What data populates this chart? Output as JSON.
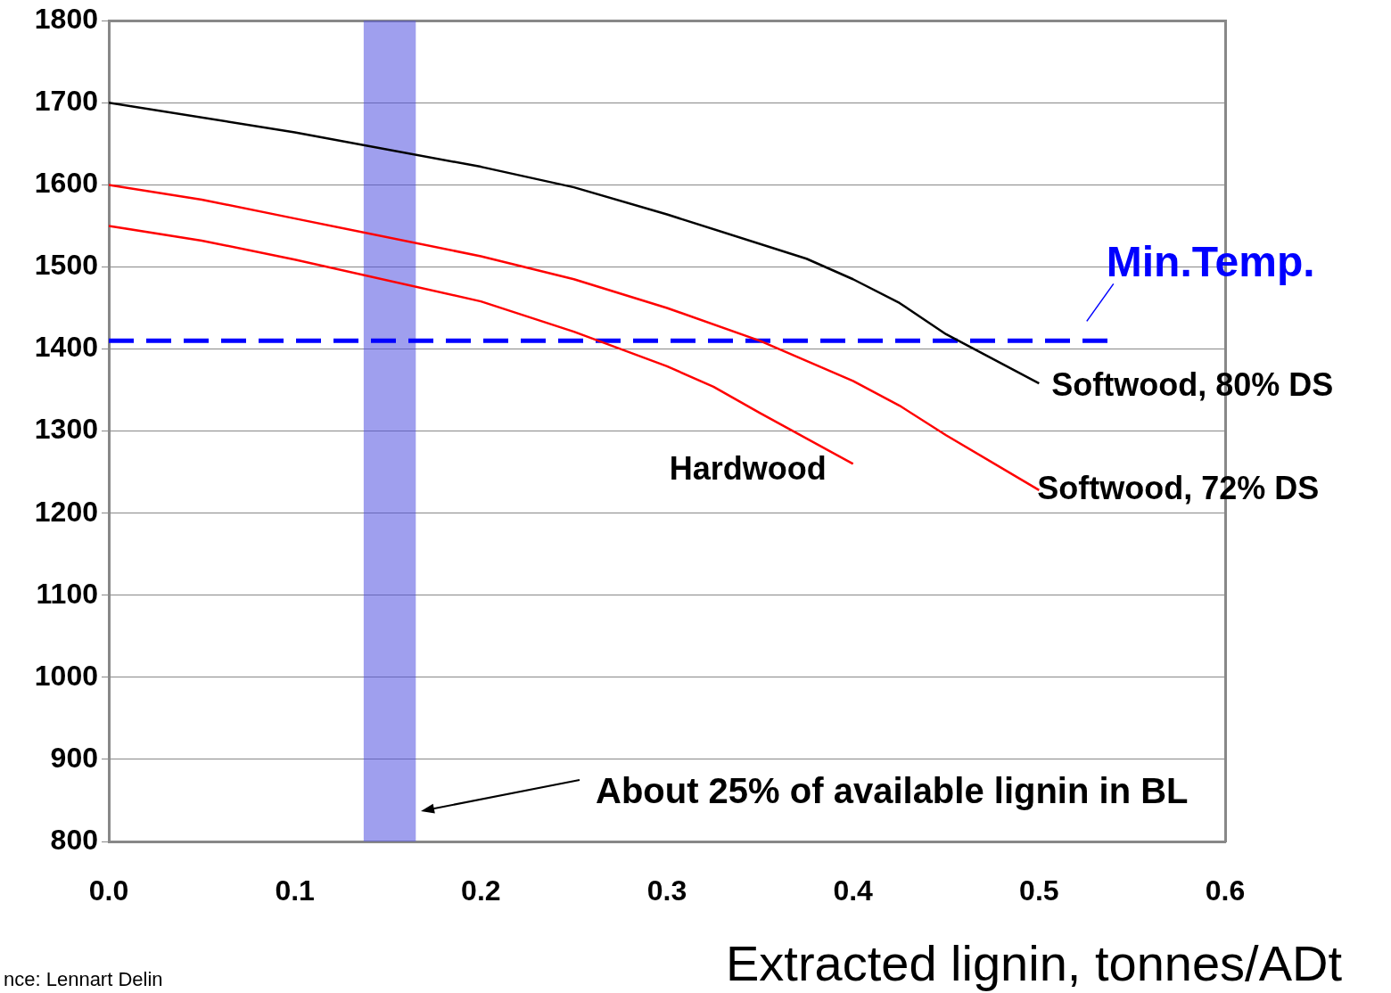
{
  "chart_data": {
    "type": "line",
    "xlabel": "Extracted lignin, tonnes/ADt",
    "xlim": [
      0,
      0.6
    ],
    "xticks": [
      {
        "value": 0,
        "label": "0.0"
      },
      {
        "value": 0.1,
        "label": "0.1"
      },
      {
        "value": 0.2,
        "label": "0.2"
      },
      {
        "value": 0.3,
        "label": "0.3"
      },
      {
        "value": 0.4,
        "label": "0.4"
      },
      {
        "value": 0.5,
        "label": "0.5"
      },
      {
        "value": 0.6,
        "label": "0.6"
      }
    ],
    "ylim": [
      800,
      1800
    ],
    "yticks": [
      800,
      900,
      1000,
      1100,
      1200,
      1300,
      1400,
      1500,
      1600,
      1700,
      1800
    ],
    "grid": "y",
    "legend": false,
    "marker": "none",
    "line_style": "solid",
    "series": [
      {
        "name": "Softwood, 80% DS",
        "color": "#000000",
        "x": [
          0,
          0.1,
          0.2,
          0.25,
          0.3,
          0.375,
          0.4,
          0.425,
          0.45,
          0.5
        ],
        "values": [
          1700,
          1664,
          1622,
          1597,
          1564,
          1510,
          1485,
          1456,
          1418,
          1358
        ]
      },
      {
        "name": "Softwood, 72% DS",
        "color": "#ff0000",
        "x": [
          0,
          0.05,
          0.1,
          0.2,
          0.25,
          0.3,
          0.35,
          0.4,
          0.425,
          0.45,
          0.5
        ],
        "values": [
          1600,
          1582,
          1559,
          1513,
          1485,
          1450,
          1410,
          1361,
          1331,
          1295,
          1228
        ]
      },
      {
        "name": "Hardwood",
        "color": "#ff0000",
        "x": [
          0,
          0.05,
          0.1,
          0.2,
          0.25,
          0.3,
          0.325,
          0.35,
          0.4
        ],
        "values": [
          1550,
          1532,
          1509,
          1458,
          1421,
          1379,
          1354,
          1322,
          1260
        ]
      }
    ],
    "ref_lines": [
      {
        "axis": "y",
        "value": 1410,
        "label": "Min.Temp.",
        "color": "#0000ff",
        "line_style": "dashed"
      }
    ],
    "bands": [
      {
        "axis": "x",
        "from": 0.137,
        "to": 0.165,
        "color": "#5050e0"
      }
    ],
    "annotations": [
      "About 25% of available lignin in BL",
      "nce: Lennart Delin"
    ]
  }
}
